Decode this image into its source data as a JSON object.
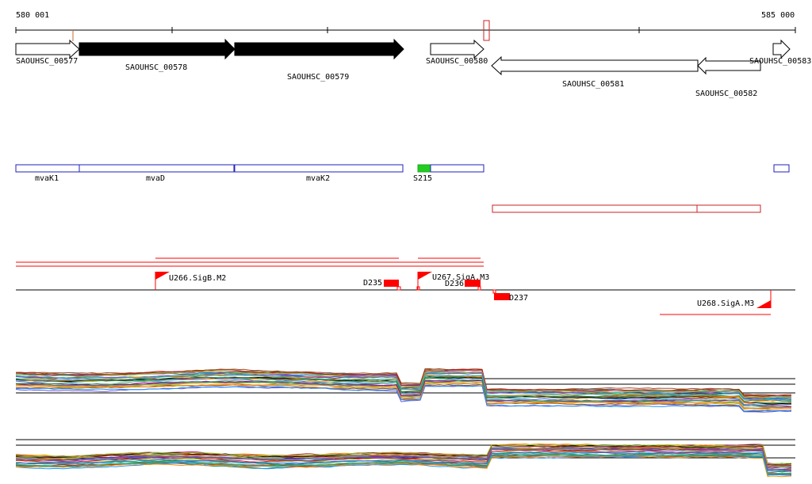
{
  "ruler": {
    "start_label": "580 001",
    "end_label": "585 000"
  },
  "genes": [
    {
      "name": "SAOUHSC_00577",
      "filled": false
    },
    {
      "name": "SAOUHSC_00578",
      "filled": true
    },
    {
      "name": "SAOUHSC_00579",
      "filled": true
    },
    {
      "name": "SAOUHSC_00580",
      "filled": false
    },
    {
      "name": "SAOUHSC_00581",
      "filled": false
    },
    {
      "name": "SAOUHSC_00582",
      "filled": false
    },
    {
      "name": "SAOUHSC_00583",
      "filled": false
    }
  ],
  "annotations": [
    {
      "name": "mvaK1"
    },
    {
      "name": "mvaD"
    },
    {
      "name": "mvaK2"
    },
    {
      "name": "S215"
    },
    {
      "name": ""
    }
  ],
  "features": [
    {
      "name": "U266.SigB.M2"
    },
    {
      "name": "D235"
    },
    {
      "name": "U267.SigA.M3"
    },
    {
      "name": "D236"
    },
    {
      "name": "D237"
    },
    {
      "name": "U268.SigA.M3"
    }
  ],
  "colors": {
    "gene_filled": "#000000",
    "annotation": "#2222bb",
    "annotation_highlight": "#22cc22",
    "feature": "#ff0000",
    "feature_outline": "#cc2222"
  }
}
